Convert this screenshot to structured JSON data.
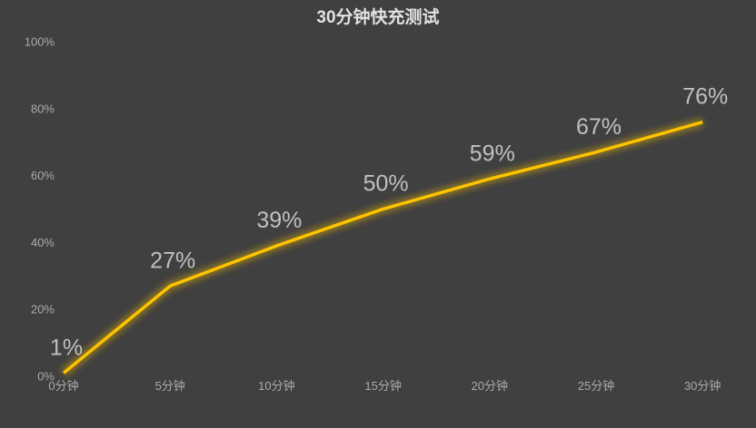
{
  "chart_data": {
    "type": "line",
    "title": "30分钟快充测试",
    "x_labels": [
      "0分钟",
      "5分钟",
      "10分钟",
      "15分钟",
      "20分钟",
      "25分钟",
      "30分钟"
    ],
    "values": [
      1,
      27,
      39,
      50,
      59,
      67,
      76
    ],
    "data_labels": [
      "1%",
      "27%",
      "39%",
      "50%",
      "59%",
      "67%",
      "76%"
    ],
    "y_ticks": [
      "0%",
      "20%",
      "40%",
      "60%",
      "80%",
      "100%"
    ],
    "y_tick_values": [
      0,
      20,
      40,
      60,
      80,
      100
    ],
    "ylim": [
      0,
      100
    ],
    "grid": false,
    "legend": false,
    "markers": false,
    "colors": {
      "background": "#404040",
      "line": "#FFC400",
      "line_glow": "#E8B400",
      "title_text": "#E2E2E2",
      "data_label_text": "#C0C0C0",
      "axis_tick_text": "#ABABAB"
    }
  }
}
